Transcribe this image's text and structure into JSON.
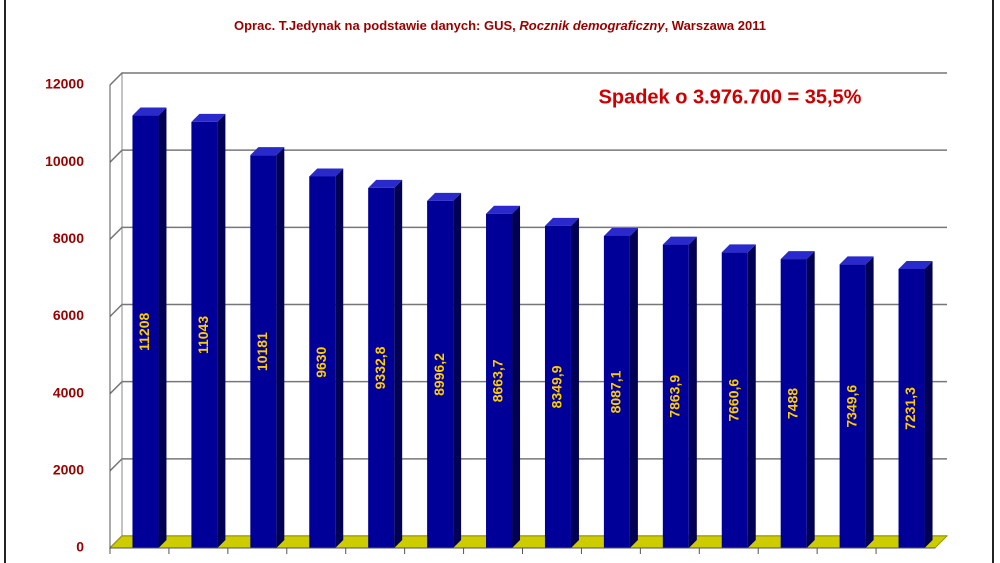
{
  "chart_data": {
    "type": "bar",
    "source": [
      "Oprac. T.Jedynak na podstawie danych: GUS, ",
      "Rocznik demograficzny",
      ", Warszawa 2011"
    ],
    "annotation": "Spadek o 3.976.700 = 35,5%",
    "categories": [
      null,
      null,
      null,
      null,
      null,
      null,
      null,
      null,
      null,
      null,
      null,
      null,
      null,
      null
    ],
    "values": [
      11208,
      11043,
      10181,
      9630,
      9332.8,
      8996.2,
      8663.7,
      8349.9,
      8087.1,
      7863.9,
      7660.6,
      7488,
      7349.6,
      7231.3
    ],
    "value_labels": [
      "11208",
      "11043",
      "10181",
      "9630",
      "9332,8",
      "8996,2",
      "8663,7",
      "8349,9",
      "8087,1",
      "7863,9",
      "7660,6",
      "7488",
      "7349,6",
      "7231,3"
    ],
    "color": "#000099",
    "ylim": [
      0,
      12000
    ],
    "yticks": [
      0,
      2000,
      4000,
      6000,
      8000,
      10000,
      12000
    ],
    "grid": true
  }
}
